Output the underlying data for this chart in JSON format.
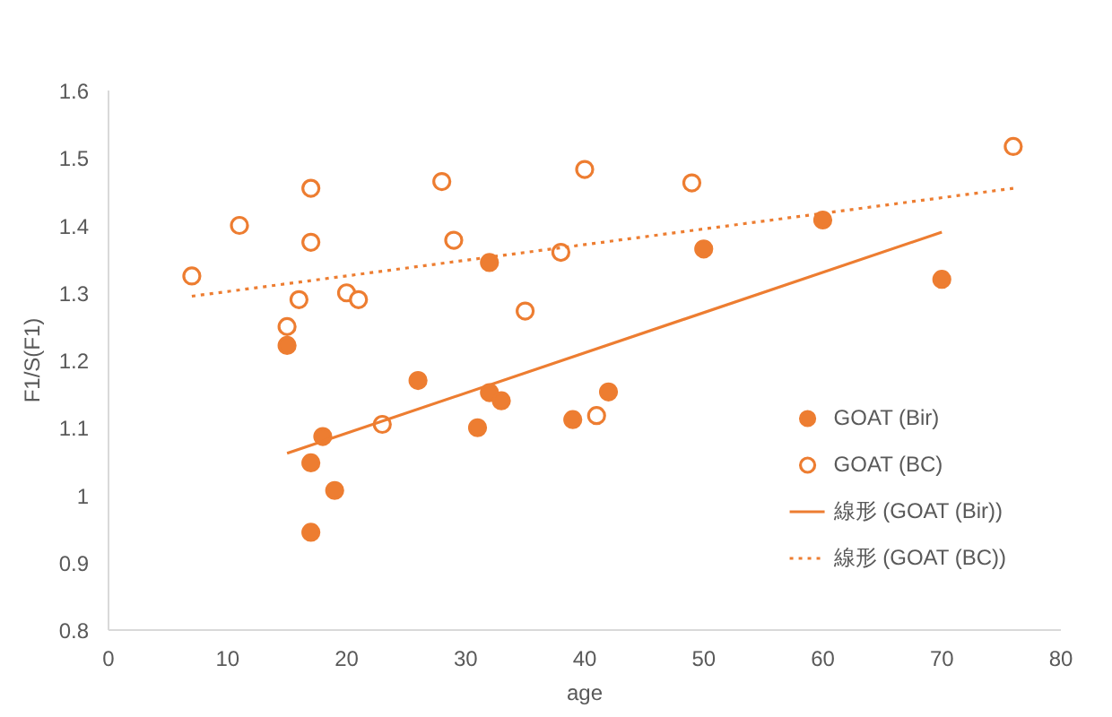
{
  "chart_data": {
    "type": "scatter",
    "xlabel": "age",
    "ylabel": "F1/S(F1)",
    "xlim": [
      0,
      80
    ],
    "ylim": [
      0.8,
      1.6
    ],
    "xticks": [
      0,
      10,
      20,
      30,
      40,
      50,
      60,
      70,
      80
    ],
    "yticks": [
      {
        "value": 0.8,
        "label": "0.8"
      },
      {
        "value": 0.9,
        "label": "0.9"
      },
      {
        "value": 1,
        "label": "1"
      },
      {
        "value": 1.1,
        "label": "1.1"
      },
      {
        "value": 1.2,
        "label": "1.2"
      },
      {
        "value": 1.3,
        "label": "1.3"
      },
      {
        "value": 1.4,
        "label": "1.4"
      },
      {
        "value": 1.5,
        "label": "1.5"
      },
      {
        "value": 1.6,
        "label": "1.6"
      }
    ],
    "grid": false,
    "legend": "bottom right",
    "marker": "circle",
    "series": [
      {
        "name": "GOAT (Bir)",
        "color": "#ed7d31",
        "x": [
          15,
          17,
          17,
          18,
          19,
          26,
          31,
          32,
          32,
          33,
          39,
          42,
          50,
          60,
          70
        ],
        "values": [
          1.222,
          1.048,
          0.945,
          1.087,
          1.007,
          1.17,
          1.1,
          1.152,
          1.345,
          1.14,
          1.112,
          1.153,
          1.365,
          1.408,
          1.32
        ]
      },
      {
        "name": "GOAT (BC)",
        "color": "#ed7d31",
        "x": [
          7,
          11,
          15,
          16,
          17,
          17,
          20,
          21,
          23,
          28,
          29,
          35,
          38,
          40,
          41,
          49,
          76
        ],
        "values": [
          1.325,
          1.4,
          1.25,
          1.29,
          1.455,
          1.375,
          1.3,
          1.29,
          1.105,
          1.465,
          1.378,
          1.273,
          1.36,
          1.483,
          1.118,
          1.463,
          1.517
        ]
      },
      {
        "name": "線形 (GOAT (Bir))",
        "type": "line",
        "color": "#ed7d31",
        "line_style": "solid",
        "marker": "none",
        "x": [
          15,
          70
        ],
        "values": [
          1.062,
          1.39
        ]
      },
      {
        "name": "線形 (GOAT (BC))",
        "type": "line",
        "color": "#ed7d31",
        "line_style": "dotted",
        "marker": "none",
        "x": [
          7,
          76
        ],
        "values": [
          1.295,
          1.455
        ]
      }
    ]
  }
}
